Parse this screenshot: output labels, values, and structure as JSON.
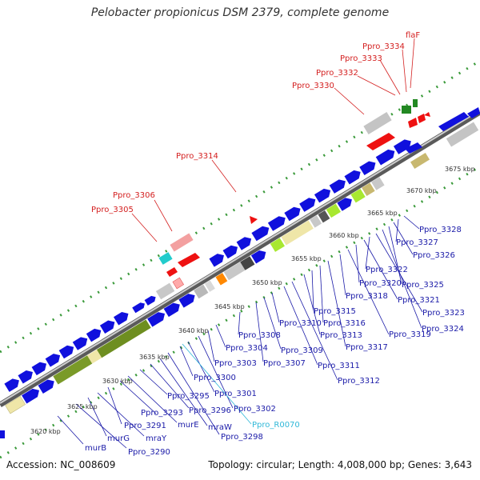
{
  "title": "Pelobacter propionicus DSM 2379, complete genome",
  "footer": {
    "accession": "Accession: NC_008609",
    "summary": "Topology: circular; Length: 4,008,000 bp; Genes: 3,643"
  },
  "colors": {
    "blue": "#1010dd",
    "red": "#ee1111",
    "olive": "#7a9a28",
    "khaki": "#efe6a8",
    "green": "#228822",
    "grey": "#c4c4c4",
    "label_blue": "#1a1aa8",
    "label_red": "#d42020",
    "label_cyan": "#30b8d8"
  },
  "ticks": [
    "3620 kbp",
    "3625 kbp",
    "3630 kbp",
    "3635 kbp",
    "3640 kbp",
    "3645 kbp",
    "3650 kbp",
    "3655 kbp",
    "3660 kbp",
    "3665 kbp",
    "3670 kbp",
    "3675 kbp"
  ],
  "labels_blue": [
    "murB",
    "Ppro_3290",
    "murG",
    "mraY",
    "Ppro_3291",
    "Ppro_3293",
    "murE",
    "Ppro_3295",
    "Ppro_3296",
    "mraW",
    "Ppro_3298",
    "Ppro_3300",
    "Ppro_3301",
    "Ppro_3302",
    "Ppro_3303",
    "Ppro_3304",
    "Ppro_3307",
    "Ppro_3308",
    "Ppro_3309",
    "Ppro_3310",
    "Ppro_3311",
    "Ppro_3312",
    "Ppro_3313",
    "Ppro_3315",
    "Ppro_3316",
    "Ppro_3317",
    "Ppro_3318",
    "Ppro_3319",
    "Ppro_3320",
    "Ppro_3321",
    "Ppro_3322",
    "Ppro_3323",
    "Ppro_3324",
    "Ppro_3325",
    "Ppro_3326",
    "Ppro_3327",
    "Ppro_3328"
  ],
  "labels_cyan": [
    "Ppro_R0070"
  ],
  "labels_red": [
    "Ppro_3305",
    "Ppro_3306",
    "Ppro_3314",
    "Ppro_3330",
    "Ppro_3332",
    "Ppro_3333",
    "Ppro_3334",
    "flaF"
  ]
}
